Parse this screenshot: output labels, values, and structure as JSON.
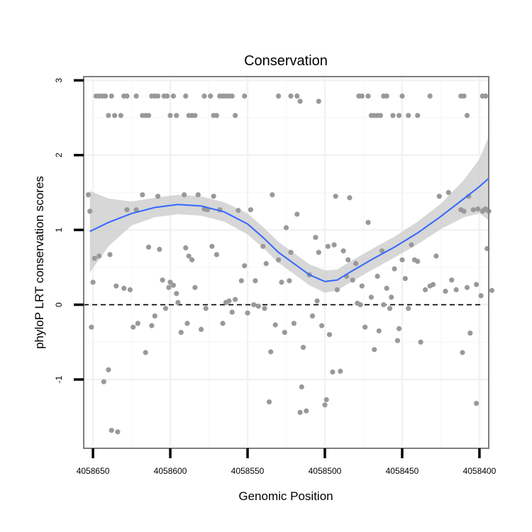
{
  "chart_data": {
    "type": "scatter",
    "title": "Conservation",
    "xlabel": "Genomic Position",
    "ylabel": "phyloP LRT conservation scores",
    "x_reversed": true,
    "xlim": [
      4058656,
      4058394
    ],
    "ylim": [
      -1.92,
      3.05
    ],
    "x_ticks": [
      4058650,
      4058600,
      4058550,
      4058500,
      4058450,
      4058400
    ],
    "y_ticks": [
      -1,
      0,
      1,
      2,
      3
    ],
    "reference_line_y": 0,
    "grid": true,
    "point_color": "#999999",
    "smooth_color": "#3366ff",
    "ribbon_color": "#cccccc",
    "points": [
      [
        4058648,
        2.79
      ],
      [
        4058646,
        2.79
      ],
      [
        4058644,
        2.79
      ],
      [
        4058642,
        2.79
      ],
      [
        4058640,
        2.53
      ],
      [
        4058638,
        2.79
      ],
      [
        4058636,
        2.53
      ],
      [
        4058632,
        2.53
      ],
      [
        4058630,
        2.79
      ],
      [
        4058628,
        2.79
      ],
      [
        4058622,
        2.79
      ],
      [
        4058618,
        2.53
      ],
      [
        4058616,
        2.53
      ],
      [
        4058614,
        2.53
      ],
      [
        4058612,
        2.79
      ],
      [
        4058610,
        2.79
      ],
      [
        4058608,
        2.79
      ],
      [
        4058604,
        2.79
      ],
      [
        4058602,
        2.79
      ],
      [
        4058600,
        2.53
      ],
      [
        4058598,
        2.79
      ],
      [
        4058596,
        2.53
      ],
      [
        4058590,
        2.79
      ],
      [
        4058588,
        2.53
      ],
      [
        4058586,
        2.53
      ],
      [
        4058584,
        2.53
      ],
      [
        4058578,
        2.79
      ],
      [
        4058574,
        2.79
      ],
      [
        4058572,
        2.53
      ],
      [
        4058570,
        2.53
      ],
      [
        4058568,
        2.79
      ],
      [
        4058566,
        2.79
      ],
      [
        4058564,
        2.79
      ],
      [
        4058562,
        2.79
      ],
      [
        4058560,
        2.79
      ],
      [
        4058558,
        2.53
      ],
      [
        4058552,
        2.79
      ],
      [
        4058530,
        2.79
      ],
      [
        4058522,
        2.79
      ],
      [
        4058518,
        2.79
      ],
      [
        4058516,
        2.72
      ],
      [
        4058504,
        2.72
      ],
      [
        4058478,
        2.79
      ],
      [
        4058476,
        2.79
      ],
      [
        4058472,
        2.79
      ],
      [
        4058470,
        2.53
      ],
      [
        4058468,
        2.53
      ],
      [
        4058466,
        2.53
      ],
      [
        4058464,
        2.53
      ],
      [
        4058462,
        2.79
      ],
      [
        4058460,
        2.79
      ],
      [
        4058456,
        2.53
      ],
      [
        4058452,
        2.53
      ],
      [
        4058450,
        2.79
      ],
      [
        4058446,
        2.53
      ],
      [
        4058440,
        2.53
      ],
      [
        4058432,
        2.79
      ],
      [
        4058412,
        2.79
      ],
      [
        4058410,
        2.79
      ],
      [
        4058408,
        2.53
      ],
      [
        4058398,
        2.79
      ],
      [
        4058396,
        2.79
      ],
      [
        4058653,
        1.47
      ],
      [
        4058652,
        1.25
      ],
      [
        4058651,
        -0.3
      ],
      [
        4058650,
        0.3
      ],
      [
        4058649,
        0.62
      ],
      [
        4058646,
        0.65
      ],
      [
        4058643,
        -1.03
      ],
      [
        4058640,
        -0.87
      ],
      [
        4058639,
        0.67
      ],
      [
        4058638,
        -1.68
      ],
      [
        4058635,
        0.25
      ],
      [
        4058634,
        -1.7
      ],
      [
        4058630,
        0.22
      ],
      [
        4058628,
        1.27
      ],
      [
        4058626,
        0.2
      ],
      [
        4058624,
        -0.3
      ],
      [
        4058622,
        1.27
      ],
      [
        4058621,
        -0.25
      ],
      [
        4058618,
        1.47
      ],
      [
        4058616,
        -0.64
      ],
      [
        4058614,
        0.77
      ],
      [
        4058612,
        -0.28
      ],
      [
        4058610,
        -0.15
      ],
      [
        4058608,
        1.45
      ],
      [
        4058607,
        0.74
      ],
      [
        4058605,
        0.33
      ],
      [
        4058603,
        -0.05
      ],
      [
        4058601,
        0.23
      ],
      [
        4058600,
        0.3
      ],
      [
        4058598,
        0.26
      ],
      [
        4058596,
        0.15
      ],
      [
        4058595,
        0.03
      ],
      [
        4058593,
        -0.37
      ],
      [
        4058591,
        1.47
      ],
      [
        4058590,
        0.76
      ],
      [
        4058589,
        -0.25
      ],
      [
        4058588,
        0.65
      ],
      [
        4058586,
        0.6
      ],
      [
        4058584,
        0.23
      ],
      [
        4058582,
        1.47
      ],
      [
        4058580,
        -0.33
      ],
      [
        4058578,
        1.28
      ],
      [
        4058577,
        -0.05
      ],
      [
        4058576,
        1.27
      ],
      [
        4058573,
        0.78
      ],
      [
        4058572,
        1.45
      ],
      [
        4058570,
        0.67
      ],
      [
        4058568,
        1.27
      ],
      [
        4058566,
        -0.25
      ],
      [
        4058564,
        0.03
      ],
      [
        4058562,
        0.05
      ],
      [
        4058560,
        -0.1
      ],
      [
        4058558,
        0.07
      ],
      [
        4058556,
        1.26
      ],
      [
        4058554,
        0.32
      ],
      [
        4058552,
        0.52
      ],
      [
        4058550,
        -0.11
      ],
      [
        4058548,
        1.27
      ],
      [
        4058546,
        0.0
      ],
      [
        4058545,
        0.32
      ],
      [
        4058543,
        -0.02
      ],
      [
        4058540,
        0.78
      ],
      [
        4058539,
        -0.05
      ],
      [
        4058538,
        0.55
      ],
      [
        4058536,
        -1.3
      ],
      [
        4058535,
        -0.63
      ],
      [
        4058534,
        1.47
      ],
      [
        4058532,
        -0.27
      ],
      [
        4058530,
        0.6
      ],
      [
        4058528,
        0.3
      ],
      [
        4058526,
        -0.37
      ],
      [
        4058525,
        1.03
      ],
      [
        4058523,
        0.32
      ],
      [
        4058522,
        0.7
      ],
      [
        4058520,
        -0.25
      ],
      [
        4058518,
        1.21
      ],
      [
        4058516,
        -1.44
      ],
      [
        4058515,
        -1.1
      ],
      [
        4058514,
        -0.57
      ],
      [
        4058512,
        -1.42
      ],
      [
        4058510,
        0.4
      ],
      [
        4058508,
        -0.15
      ],
      [
        4058506,
        0.9
      ],
      [
        4058505,
        0.05
      ],
      [
        4058504,
        0.7
      ],
      [
        4058502,
        -0.28
      ],
      [
        4058500,
        -1.34
      ],
      [
        4058499,
        -1.27
      ],
      [
        4058498,
        0.78
      ],
      [
        4058497,
        -0.4
      ],
      [
        4058495,
        -0.9
      ],
      [
        4058494,
        0.8
      ],
      [
        4058493,
        1.45
      ],
      [
        4058492,
        0.2
      ],
      [
        4058490,
        -0.89
      ],
      [
        4058488,
        0.72
      ],
      [
        4058486,
        0.38
      ],
      [
        4058485,
        0.6
      ],
      [
        4058484,
        1.43
      ],
      [
        4058482,
        0.33
      ],
      [
        4058480,
        0.55
      ],
      [
        4058479,
        0.02
      ],
      [
        4058477,
        0.0
      ],
      [
        4058476,
        0.25
      ],
      [
        4058474,
        -0.3
      ],
      [
        4058472,
        1.1
      ],
      [
        4058470,
        0.1
      ],
      [
        4058468,
        -0.6
      ],
      [
        4058466,
        0.38
      ],
      [
        4058465,
        -0.35
      ],
      [
        4058463,
        0.72
      ],
      [
        4058462,
        0.0
      ],
      [
        4058460,
        0.22
      ],
      [
        4058458,
        -0.05
      ],
      [
        4058457,
        0.1
      ],
      [
        4058455,
        0.48
      ],
      [
        4058453,
        -0.48
      ],
      [
        4058452,
        -0.32
      ],
      [
        4058450,
        0.6
      ],
      [
        4058448,
        0.35
      ],
      [
        4058446,
        -0.05
      ],
      [
        4058444,
        0.8
      ],
      [
        4058442,
        0.6
      ],
      [
        4058440,
        0.58
      ],
      [
        4058438,
        -0.5
      ],
      [
        4058435,
        0.2
      ],
      [
        4058432,
        0.25
      ],
      [
        4058430,
        0.27
      ],
      [
        4058428,
        0.65
      ],
      [
        4058426,
        1.45
      ],
      [
        4058422,
        0.18
      ],
      [
        4058420,
        1.5
      ],
      [
        4058418,
        0.33
      ],
      [
        4058415,
        0.2
      ],
      [
        4058412,
        1.27
      ],
      [
        4058411,
        -0.64
      ],
      [
        4058410,
        1.25
      ],
      [
        4058408,
        0.23
      ],
      [
        4058407,
        1.45
      ],
      [
        4058406,
        -0.38
      ],
      [
        4058404,
        1.27
      ],
      [
        4058402,
        0.27
      ],
      [
        4058401,
        1.28
      ],
      [
        4058399,
        0.12
      ],
      [
        4058398,
        1.25
      ],
      [
        4058397,
        1.27
      ],
      [
        4058396,
        1.28
      ],
      [
        4058395,
        0.75
      ],
      [
        4058394,
        1.25
      ],
      [
        4058392,
        0.19
      ],
      [
        4058402,
        -1.32
      ]
    ],
    "smooth_fit": [
      {
        "x": 4058652,
        "y": 0.98,
        "lo": 0.43,
        "hi": 1.52
      },
      {
        "x": 4058640,
        "y": 1.1,
        "lo": 0.78,
        "hi": 1.42
      },
      {
        "x": 4058625,
        "y": 1.22,
        "lo": 1.06,
        "hi": 1.38
      },
      {
        "x": 4058610,
        "y": 1.3,
        "lo": 1.17,
        "hi": 1.43
      },
      {
        "x": 4058595,
        "y": 1.34,
        "lo": 1.21,
        "hi": 1.47
      },
      {
        "x": 4058580,
        "y": 1.32,
        "lo": 1.19,
        "hi": 1.45
      },
      {
        "x": 4058565,
        "y": 1.24,
        "lo": 1.11,
        "hi": 1.37
      },
      {
        "x": 4058550,
        "y": 1.08,
        "lo": 0.94,
        "hi": 1.22
      },
      {
        "x": 4058540,
        "y": 0.9,
        "lo": 0.76,
        "hi": 1.04
      },
      {
        "x": 4058530,
        "y": 0.7,
        "lo": 0.56,
        "hi": 0.84
      },
      {
        "x": 4058520,
        "y": 0.55,
        "lo": 0.41,
        "hi": 0.69
      },
      {
        "x": 4058510,
        "y": 0.4,
        "lo": 0.26,
        "hi": 0.54
      },
      {
        "x": 4058500,
        "y": 0.31,
        "lo": 0.16,
        "hi": 0.46
      },
      {
        "x": 4058492,
        "y": 0.33,
        "lo": 0.19,
        "hi": 0.47
      },
      {
        "x": 4058485,
        "y": 0.42,
        "lo": 0.28,
        "hi": 0.56
      },
      {
        "x": 4058470,
        "y": 0.6,
        "lo": 0.46,
        "hi": 0.74
      },
      {
        "x": 4058455,
        "y": 0.77,
        "lo": 0.63,
        "hi": 0.91
      },
      {
        "x": 4058440,
        "y": 0.96,
        "lo": 0.81,
        "hi": 1.11
      },
      {
        "x": 4058425,
        "y": 1.18,
        "lo": 1.01,
        "hi": 1.35
      },
      {
        "x": 4058410,
        "y": 1.42,
        "lo": 1.17,
        "hi": 1.67
      },
      {
        "x": 4058400,
        "y": 1.58,
        "lo": 1.22,
        "hi": 1.95
      },
      {
        "x": 4058394,
        "y": 1.69,
        "lo": 1.13,
        "hi": 2.25
      }
    ]
  }
}
